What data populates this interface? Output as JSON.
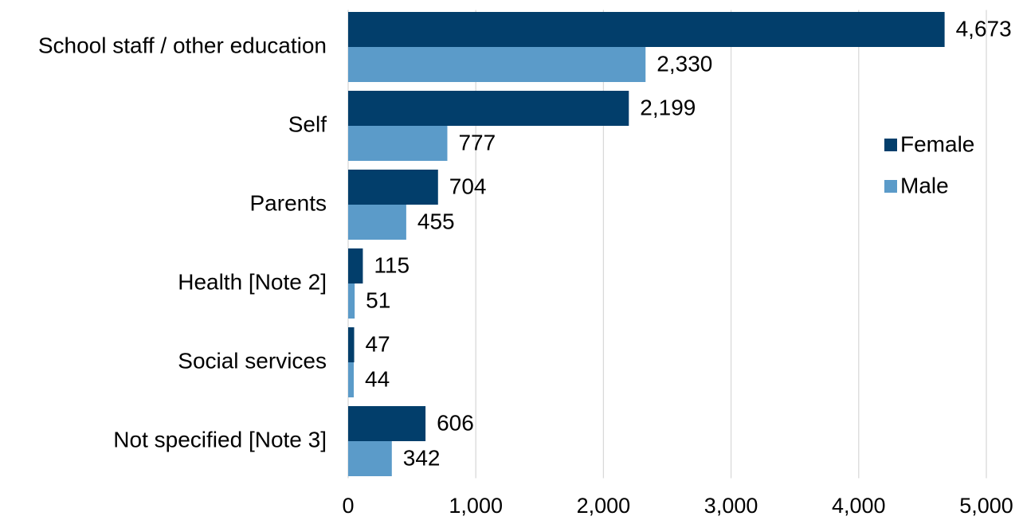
{
  "chart_data": {
    "type": "bar",
    "orientation": "horizontal",
    "categories": [
      "School staff / other education",
      "Self",
      "Parents",
      "Health [Note 2]",
      "Social services",
      "Not specified [Note 3]"
    ],
    "series": [
      {
        "name": "Female",
        "color": "#023e6b",
        "values": [
          4673,
          2199,
          704,
          115,
          47,
          606
        ],
        "value_labels": [
          "4,673",
          "2,199",
          "704",
          "115",
          "47",
          "606"
        ]
      },
      {
        "name": "Male",
        "color": "#5b9bc9",
        "values": [
          2330,
          777,
          455,
          51,
          44,
          342
        ],
        "value_labels": [
          "2,330",
          "777",
          "455",
          "51",
          "44",
          "342"
        ]
      }
    ],
    "xlim": [
      0,
      5000
    ],
    "xticks": [
      0,
      {
        "value": 1000,
        "label": "1,000"
      },
      {
        "value": 2000,
        "label": "2,000"
      },
      {
        "value": 3000,
        "label": "3,000"
      },
      {
        "value": 4000,
        "label": "4,000"
      },
      {
        "value": 5000,
        "label": "5,000"
      }
    ],
    "grid": true,
    "legend": "right"
  }
}
